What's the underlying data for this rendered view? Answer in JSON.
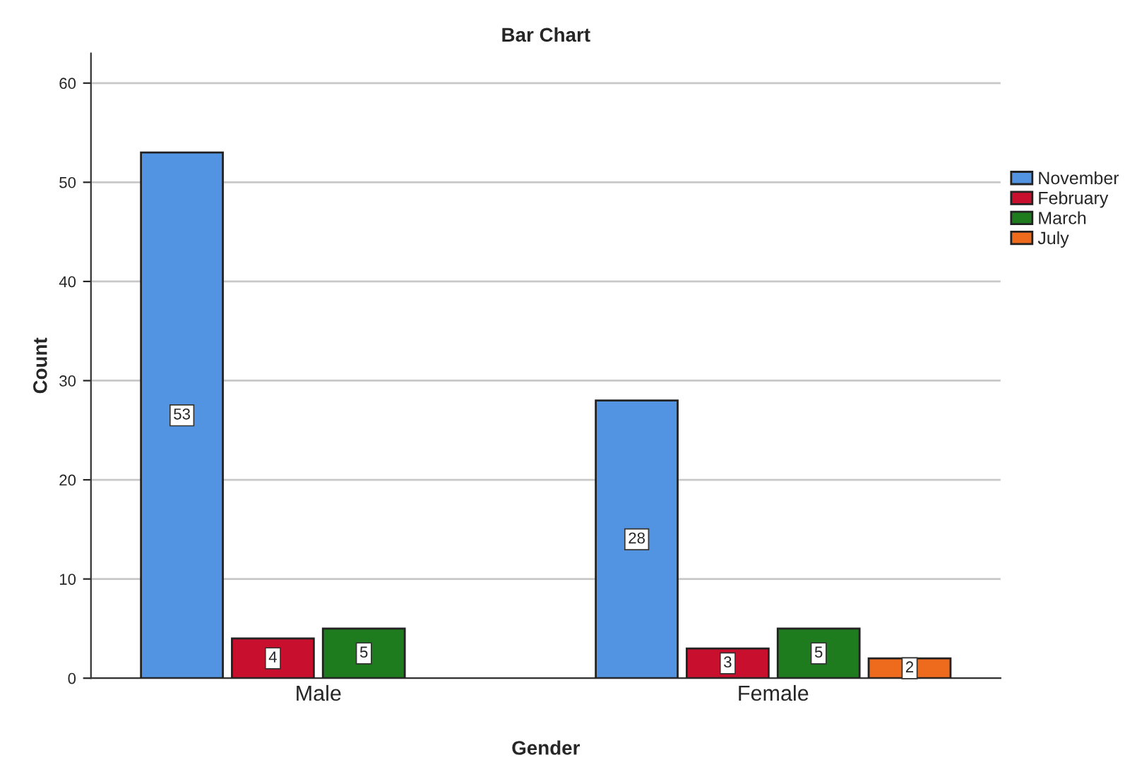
{
  "chart_data": {
    "type": "bar",
    "title": "Bar Chart",
    "xlabel": "Gender",
    "ylabel": "Count",
    "categories": [
      "Male",
      "Female"
    ],
    "series": [
      {
        "name": "November",
        "color": "#5294e2",
        "values": [
          53,
          28
        ]
      },
      {
        "name": "February",
        "color": "#c8102e",
        "values": [
          4,
          3
        ]
      },
      {
        "name": "March",
        "color": "#1e7b1e",
        "values": [
          5,
          5
        ]
      },
      {
        "name": "July",
        "color": "#ee6a1c",
        "values": [
          null,
          2
        ]
      }
    ],
    "ylim": [
      0,
      63
    ],
    "yticks": [
      0,
      10,
      20,
      30,
      40,
      50,
      60
    ],
    "grid": "y",
    "legend": "right",
    "data_labels": true
  }
}
